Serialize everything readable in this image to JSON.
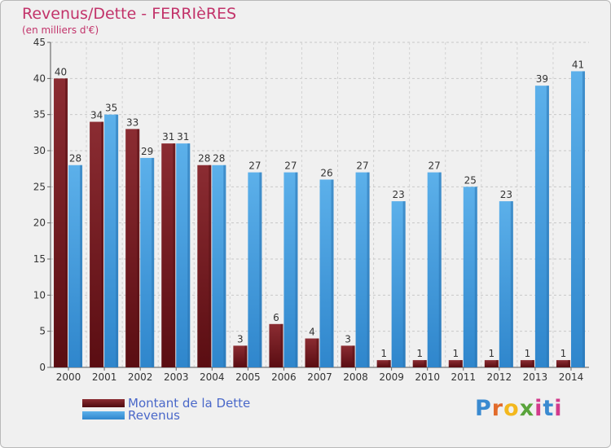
{
  "chart_data": {
    "type": "bar",
    "title": "Revenus/Dette - FERRIèRES",
    "subtitle": "(en milliers d'€)",
    "categories": [
      "2000",
      "2001",
      "2002",
      "2003",
      "2004",
      "2005",
      "2006",
      "2007",
      "2008",
      "2009",
      "2010",
      "2011",
      "2012",
      "2013",
      "2014"
    ],
    "series": [
      {
        "name": "Montant de la Dette",
        "values": [
          40,
          34,
          33,
          31,
          28,
          3,
          6,
          4,
          3,
          1,
          1,
          1,
          1,
          1,
          1
        ]
      },
      {
        "name": "Revenus",
        "values": [
          28,
          35,
          29,
          31,
          28,
          27,
          27,
          26,
          27,
          23,
          27,
          25,
          23,
          39,
          41
        ]
      }
    ],
    "yticks": [
      0,
      5,
      10,
      15,
      20,
      25,
      30,
      35,
      40,
      45
    ],
    "ylim": [
      0,
      45
    ],
    "grid": true,
    "legend_position": "bottom-left",
    "colors": {
      "dette": "#7a1f24",
      "revenus": "#4aa3e0"
    }
  },
  "logo": {
    "text": "Proxiti",
    "letters": [
      "P",
      "r",
      "o",
      "x",
      "i",
      "t",
      "i"
    ]
  }
}
